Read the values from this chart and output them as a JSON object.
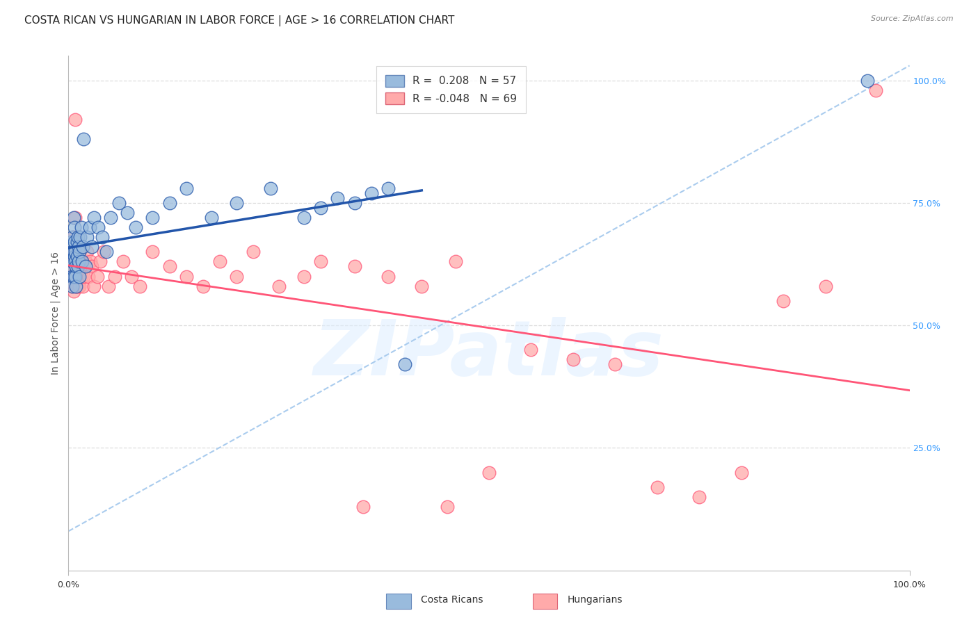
{
  "title": "COSTA RICAN VS HUNGARIAN IN LABOR FORCE | AGE > 16 CORRELATION CHART",
  "source": "Source: ZipAtlas.com",
  "ylabel": "In Labor Force | Age > 16",
  "xlim": [
    0.0,
    1.0
  ],
  "ylim": [
    0.0,
    1.05
  ],
  "y_tick_labels_right": [
    "100.0%",
    "75.0%",
    "50.0%",
    "25.0%"
  ],
  "y_tick_positions_right": [
    1.0,
    0.75,
    0.5,
    0.25
  ],
  "watermark": "ZIPatlas",
  "legend_blue_R": "0.208",
  "legend_blue_N": "57",
  "legend_pink_R": "-0.048",
  "legend_pink_N": "69",
  "blue_color": "#99BBDD",
  "pink_color": "#FFAAAA",
  "trendline_blue": "#2255AA",
  "trendline_pink": "#FF5577",
  "trendline_dashed_blue": "#AACCEE",
  "background_color": "#FFFFFF",
  "grid_color": "#DDDDDD",
  "title_fontsize": 11,
  "axis_label_fontsize": 10,
  "tick_fontsize": 9,
  "legend_fontsize": 11,
  "cr_x": [
    0.002,
    0.003,
    0.004,
    0.004,
    0.005,
    0.005,
    0.005,
    0.006,
    0.006,
    0.006,
    0.007,
    0.007,
    0.007,
    0.008,
    0.008,
    0.008,
    0.009,
    0.009,
    0.01,
    0.01,
    0.011,
    0.011,
    0.012,
    0.012,
    0.013,
    0.013,
    0.014,
    0.015,
    0.016,
    0.017,
    0.018,
    0.02,
    0.022,
    0.025,
    0.028,
    0.03,
    0.035,
    0.04,
    0.045,
    0.05,
    0.06,
    0.07,
    0.08,
    0.1,
    0.12,
    0.14,
    0.17,
    0.2,
    0.24,
    0.28,
    0.3,
    0.32,
    0.34,
    0.36,
    0.38,
    0.4,
    0.95
  ],
  "cr_y": [
    0.62,
    0.67,
    0.6,
    0.65,
    0.58,
    0.63,
    0.68,
    0.6,
    0.65,
    0.72,
    0.64,
    0.7,
    0.67,
    0.6,
    0.65,
    0.63,
    0.58,
    0.62,
    0.67,
    0.64,
    0.62,
    0.68,
    0.63,
    0.66,
    0.6,
    0.65,
    0.68,
    0.7,
    0.63,
    0.66,
    0.88,
    0.62,
    0.68,
    0.7,
    0.66,
    0.72,
    0.7,
    0.68,
    0.65,
    0.72,
    0.75,
    0.73,
    0.7,
    0.72,
    0.75,
    0.78,
    0.72,
    0.75,
    0.78,
    0.72,
    0.74,
    0.76,
    0.75,
    0.77,
    0.78,
    0.42,
    1.0
  ],
  "hu_x": [
    0.002,
    0.003,
    0.004,
    0.004,
    0.005,
    0.005,
    0.006,
    0.006,
    0.006,
    0.007,
    0.007,
    0.008,
    0.008,
    0.009,
    0.009,
    0.01,
    0.01,
    0.011,
    0.011,
    0.012,
    0.012,
    0.013,
    0.013,
    0.014,
    0.015,
    0.016,
    0.017,
    0.018,
    0.02,
    0.022,
    0.024,
    0.026,
    0.028,
    0.03,
    0.034,
    0.038,
    0.042,
    0.048,
    0.055,
    0.065,
    0.075,
    0.085,
    0.1,
    0.12,
    0.14,
    0.16,
    0.18,
    0.2,
    0.22,
    0.25,
    0.28,
    0.3,
    0.34,
    0.38,
    0.42,
    0.46,
    0.55,
    0.6,
    0.65,
    0.7,
    0.75,
    0.8,
    0.85,
    0.9,
    0.008,
    0.35,
    0.45,
    0.5,
    0.96
  ],
  "hu_y": [
    0.62,
    0.6,
    0.65,
    0.58,
    0.63,
    0.6,
    0.57,
    0.63,
    0.68,
    0.6,
    0.65,
    0.92,
    0.62,
    0.58,
    0.63,
    0.6,
    0.65,
    0.62,
    0.58,
    0.63,
    0.6,
    0.65,
    0.58,
    0.62,
    0.6,
    0.63,
    0.58,
    0.6,
    0.63,
    0.65,
    0.6,
    0.63,
    0.62,
    0.58,
    0.6,
    0.63,
    0.65,
    0.58,
    0.6,
    0.63,
    0.6,
    0.58,
    0.65,
    0.62,
    0.6,
    0.58,
    0.63,
    0.6,
    0.65,
    0.58,
    0.6,
    0.63,
    0.62,
    0.6,
    0.58,
    0.63,
    0.45,
    0.43,
    0.42,
    0.17,
    0.15,
    0.2,
    0.55,
    0.58,
    0.72,
    0.13,
    0.13,
    0.2,
    0.98
  ]
}
